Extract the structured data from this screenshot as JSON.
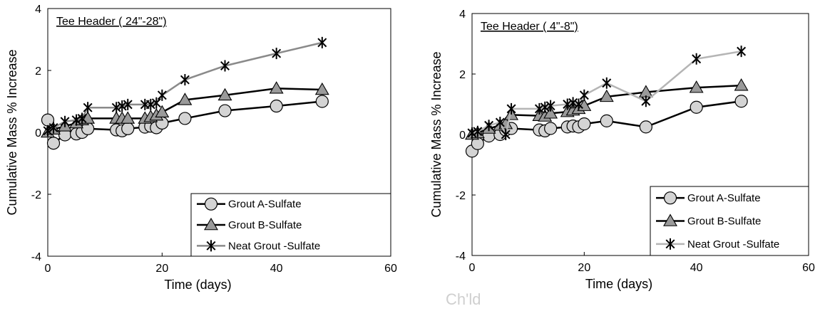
{
  "chart_data": [
    {
      "type": "line",
      "title": "Tee Header ( 24\"-28\")",
      "xlabel": "Time (days)",
      "ylabel": "Cumulative Mass % Increase",
      "xlim": [
        0,
        60
      ],
      "ylim": [
        -4,
        4
      ],
      "xticks": [
        0,
        20,
        40,
        60
      ],
      "yticks": [
        -4,
        -2,
        0,
        2,
        4
      ],
      "grid": false,
      "legend_position": "bottom-right",
      "series": [
        {
          "name": "Grout A-Sulfate",
          "marker": "circle",
          "color": "#000000",
          "fill": "#d4d4d4",
          "x": [
            0,
            1,
            3,
            5,
            6,
            7,
            12,
            13,
            14,
            17,
            18,
            19,
            20,
            24,
            31,
            40,
            48
          ],
          "y": [
            0.4,
            -0.35,
            -0.08,
            -0.05,
            0.0,
            0.12,
            0.08,
            0.05,
            0.12,
            0.17,
            0.2,
            0.15,
            0.3,
            0.45,
            0.7,
            0.85,
            1.0
          ]
        },
        {
          "name": "Grout B-Sulfate",
          "marker": "triangle",
          "color": "#000000",
          "fill": "#9a9a9a",
          "x": [
            0,
            1,
            3,
            5,
            6,
            7,
            12,
            13,
            14,
            17,
            18,
            19,
            20,
            24,
            31,
            40,
            48
          ],
          "y": [
            0.0,
            0.1,
            0.2,
            0.3,
            0.4,
            0.45,
            0.45,
            0.45,
            0.45,
            0.45,
            0.5,
            0.55,
            0.65,
            1.05,
            1.2,
            1.42,
            1.38
          ]
        },
        {
          "name": "Neat Grout -Sulfate",
          "marker": "asterisk",
          "color": "#8a8a8a",
          "fill": "#000000",
          "x": [
            0,
            1,
            3,
            5,
            6,
            7,
            12,
            13,
            14,
            17,
            18,
            19,
            20,
            24,
            31,
            40,
            48
          ],
          "y": [
            0.05,
            0.15,
            0.35,
            0.4,
            0.45,
            0.8,
            0.8,
            0.85,
            0.9,
            0.9,
            0.9,
            0.95,
            1.2,
            1.7,
            2.15,
            2.55,
            2.9
          ]
        }
      ]
    },
    {
      "type": "line",
      "title": "Tee Header ( 4\"-8\")",
      "xlabel": "Time (days)",
      "ylabel": "Cumulative Mass % Increase",
      "xlim": [
        0,
        60
      ],
      "ylim": [
        -4,
        4
      ],
      "xticks": [
        0,
        20,
        40,
        60
      ],
      "yticks": [
        -4,
        -2,
        0,
        2,
        4
      ],
      "grid": false,
      "legend_position": "bottom-right",
      "series": [
        {
          "name": "Grout A-Sulfate",
          "marker": "circle",
          "color": "#000000",
          "fill": "#d4d4d4",
          "x": [
            0,
            1,
            3,
            5,
            6,
            7,
            12,
            13,
            14,
            17,
            18,
            19,
            20,
            24,
            31,
            40,
            48
          ],
          "y": [
            -0.55,
            -0.3,
            -0.05,
            0.0,
            0.15,
            0.2,
            0.15,
            0.12,
            0.2,
            0.25,
            0.28,
            0.25,
            0.35,
            0.45,
            0.25,
            0.9,
            1.1
          ]
        },
        {
          "name": "Grout B-Sulfate",
          "marker": "triangle",
          "color": "#000000",
          "fill": "#9a9a9a",
          "x": [
            0,
            1,
            3,
            5,
            6,
            7,
            12,
            13,
            14,
            17,
            18,
            19,
            20,
            24,
            31,
            40,
            48
          ],
          "y": [
            0.0,
            0.05,
            0.2,
            0.3,
            0.35,
            0.65,
            0.62,
            0.6,
            0.7,
            0.75,
            0.8,
            0.85,
            0.95,
            1.25,
            1.4,
            1.55,
            1.62
          ]
        },
        {
          "name": "Neat Grout -Sulfate",
          "marker": "asterisk",
          "color": "#b5b5b5",
          "fill": "#000000",
          "x": [
            0,
            1,
            3,
            5,
            6,
            7,
            12,
            13,
            14,
            17,
            18,
            19,
            20,
            24,
            31,
            40,
            48
          ],
          "y": [
            0.05,
            0.1,
            0.3,
            0.4,
            0.0,
            0.85,
            0.85,
            0.9,
            0.95,
            1.0,
            1.05,
            1.0,
            1.3,
            1.7,
            1.1,
            2.5,
            2.75
          ]
        }
      ]
    }
  ],
  "caption_fragment": "Ch'ld"
}
